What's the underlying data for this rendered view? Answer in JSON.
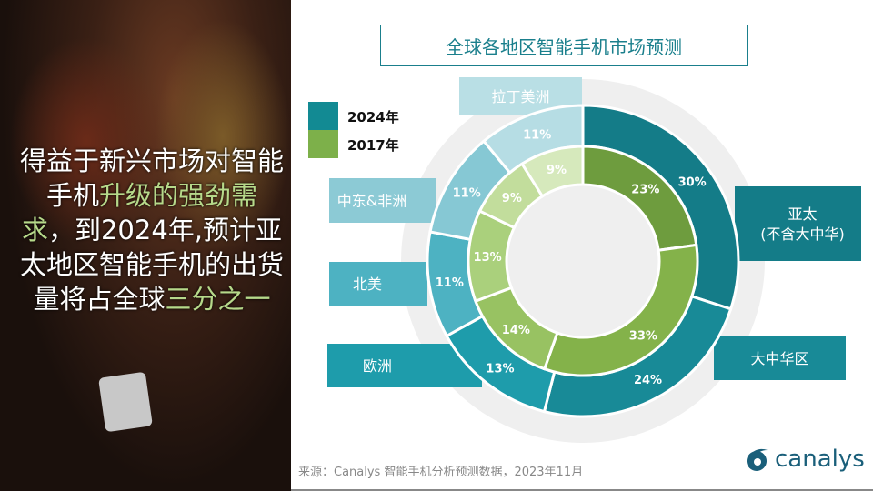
{
  "headline": {
    "p1": "得益于新兴市场对智能手机",
    "h1": "升级的强劲需求",
    "p2": "，到2024年,预计亚太地区智能手机的出货量将占全球",
    "h2": "三分之一"
  },
  "chart_data": {
    "type": "donut",
    "title": "全球各地区智能手机市场预测",
    "categories": [
      "亚太\n(不含大中华)",
      "大中华区",
      "欧洲",
      "北美",
      "中东&非洲",
      "拉丁美洲"
    ],
    "series": [
      {
        "name": "2024年",
        "values": [
          30,
          24,
          13,
          11,
          11,
          11
        ],
        "ring": "outer",
        "colors": [
          "#147c88",
          "#188a97",
          "#1e9cab",
          "#4db2c2",
          "#86c8d4",
          "#b6dde4"
        ]
      },
      {
        "name": "2017年",
        "values": [
          23,
          33,
          14,
          13,
          9,
          9
        ],
        "ring": "inner",
        "colors": [
          "#6e9c3e",
          "#84b24a",
          "#98c262",
          "#aad07c",
          "#c2dd9c",
          "#d6e9bc"
        ]
      }
    ],
    "label_colors": [
      "#147c88",
      "#188a97",
      "#1e9cab",
      "#4db2c2",
      "#8ccad5",
      "#b9dfe5"
    ],
    "legend_colors": [
      "#128a93",
      "#7db04a"
    ],
    "legend_placement": "top-left"
  },
  "source": "来源：Canalys 智能手机分析预测数据，2023年11月",
  "logo": "canalys"
}
